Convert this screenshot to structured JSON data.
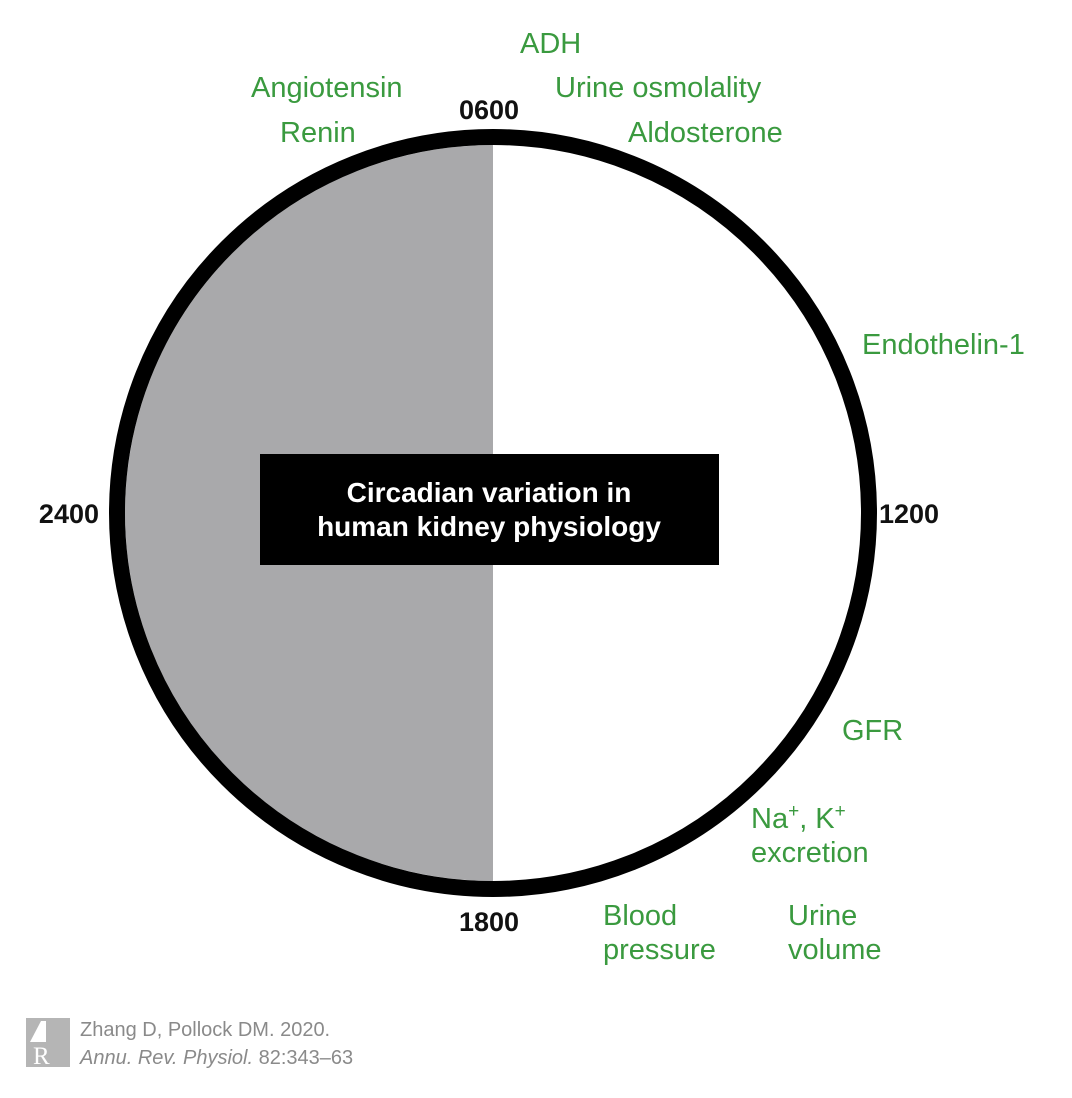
{
  "title_lines": [
    "Circadian variation in",
    "human kidney physiology"
  ],
  "time_labels": {
    "top": "0600",
    "right": "1200",
    "bottom": "1800",
    "left": "2400"
  },
  "factors": {
    "adh": "ADH",
    "angiotensin": "Angiotensin",
    "urine_osmolality": "Urine osmolality",
    "renin": "Renin",
    "aldosterone": "Aldosterone",
    "endothelin": "Endothelin-1",
    "gfr": "GFR",
    "na_k": {
      "na": "Na",
      "plus1": "+",
      "comma_k": ", K",
      "plus2": "+"
    },
    "excretion": "excretion",
    "blood_pressure": [
      "Blood",
      "pressure"
    ],
    "urine_volume": [
      "Urine",
      "volume"
    ]
  },
  "citation": {
    "line1": "Zhang D, Pollock DM. 2020.",
    "journal": "Annu. Rev. Physiol.",
    "pages": " 82:343–63"
  },
  "colors": {
    "night": "#a9a9ab",
    "ring": "#000000",
    "factor_text": "#3a9a3f",
    "title_box": "#000000"
  },
  "icons": {
    "publisher_logo": "annual-reviews-logo"
  }
}
